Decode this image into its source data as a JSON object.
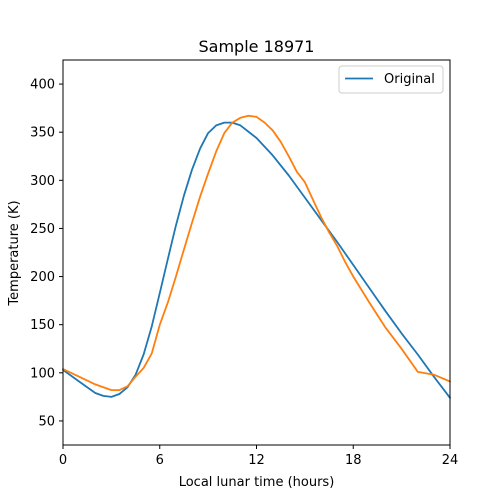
{
  "chart_data": {
    "type": "line",
    "title": "Sample 18971",
    "xlabel": "Local lunar time (hours)",
    "ylabel": "Temperature (K)",
    "xlim": [
      0,
      24
    ],
    "ylim": [
      25,
      425
    ],
    "xticks": [
      0,
      6,
      12,
      18,
      24
    ],
    "yticks": [
      50,
      100,
      150,
      200,
      250,
      300,
      350,
      400
    ],
    "grid": false,
    "legend": {
      "placement": "top-right",
      "entries": [
        "Original"
      ]
    },
    "series": [
      {
        "name": "Original",
        "color": "#1f77b4",
        "x": [
          0,
          1,
          2,
          2.5,
          3,
          3.5,
          4,
          4.5,
          5,
          5.5,
          6,
          6.5,
          7,
          7.5,
          8,
          8.5,
          9,
          9.5,
          10,
          10.5,
          11,
          12,
          13,
          14,
          15,
          16,
          17,
          18,
          19,
          20,
          21,
          22,
          23,
          24
        ],
        "y": [
          103,
          91,
          79,
          76,
          75,
          78,
          85,
          98,
          119,
          148,
          183,
          218,
          253,
          284,
          311,
          333,
          349,
          357,
          360,
          360,
          357,
          344,
          326,
          305,
          282,
          259,
          236,
          212,
          188,
          164,
          141,
          119,
          96,
          74
        ]
      },
      {
        "color": "#ff7f0e",
        "x": [
          0,
          1,
          2,
          3,
          3.5,
          4,
          4.5,
          5,
          5.5,
          6,
          6.5,
          7,
          7.5,
          8,
          8.5,
          9,
          9.5,
          10,
          10.5,
          11,
          11.5,
          12,
          12.5,
          13,
          13.5,
          14,
          14.5,
          15,
          15.5,
          16,
          16.5,
          17,
          17.5,
          18,
          19,
          20,
          21,
          22,
          23,
          24
        ],
        "y": [
          104,
          96,
          88,
          82,
          82,
          86,
          96,
          105,
          120,
          150,
          173,
          200,
          228,
          256,
          283,
          307,
          330,
          349,
          360,
          365,
          367,
          366,
          360,
          352,
          340,
          325,
          309,
          298,
          280,
          262,
          246,
          232,
          215,
          200,
          173,
          147,
          125,
          101,
          98,
          91
        ]
      }
    ]
  }
}
